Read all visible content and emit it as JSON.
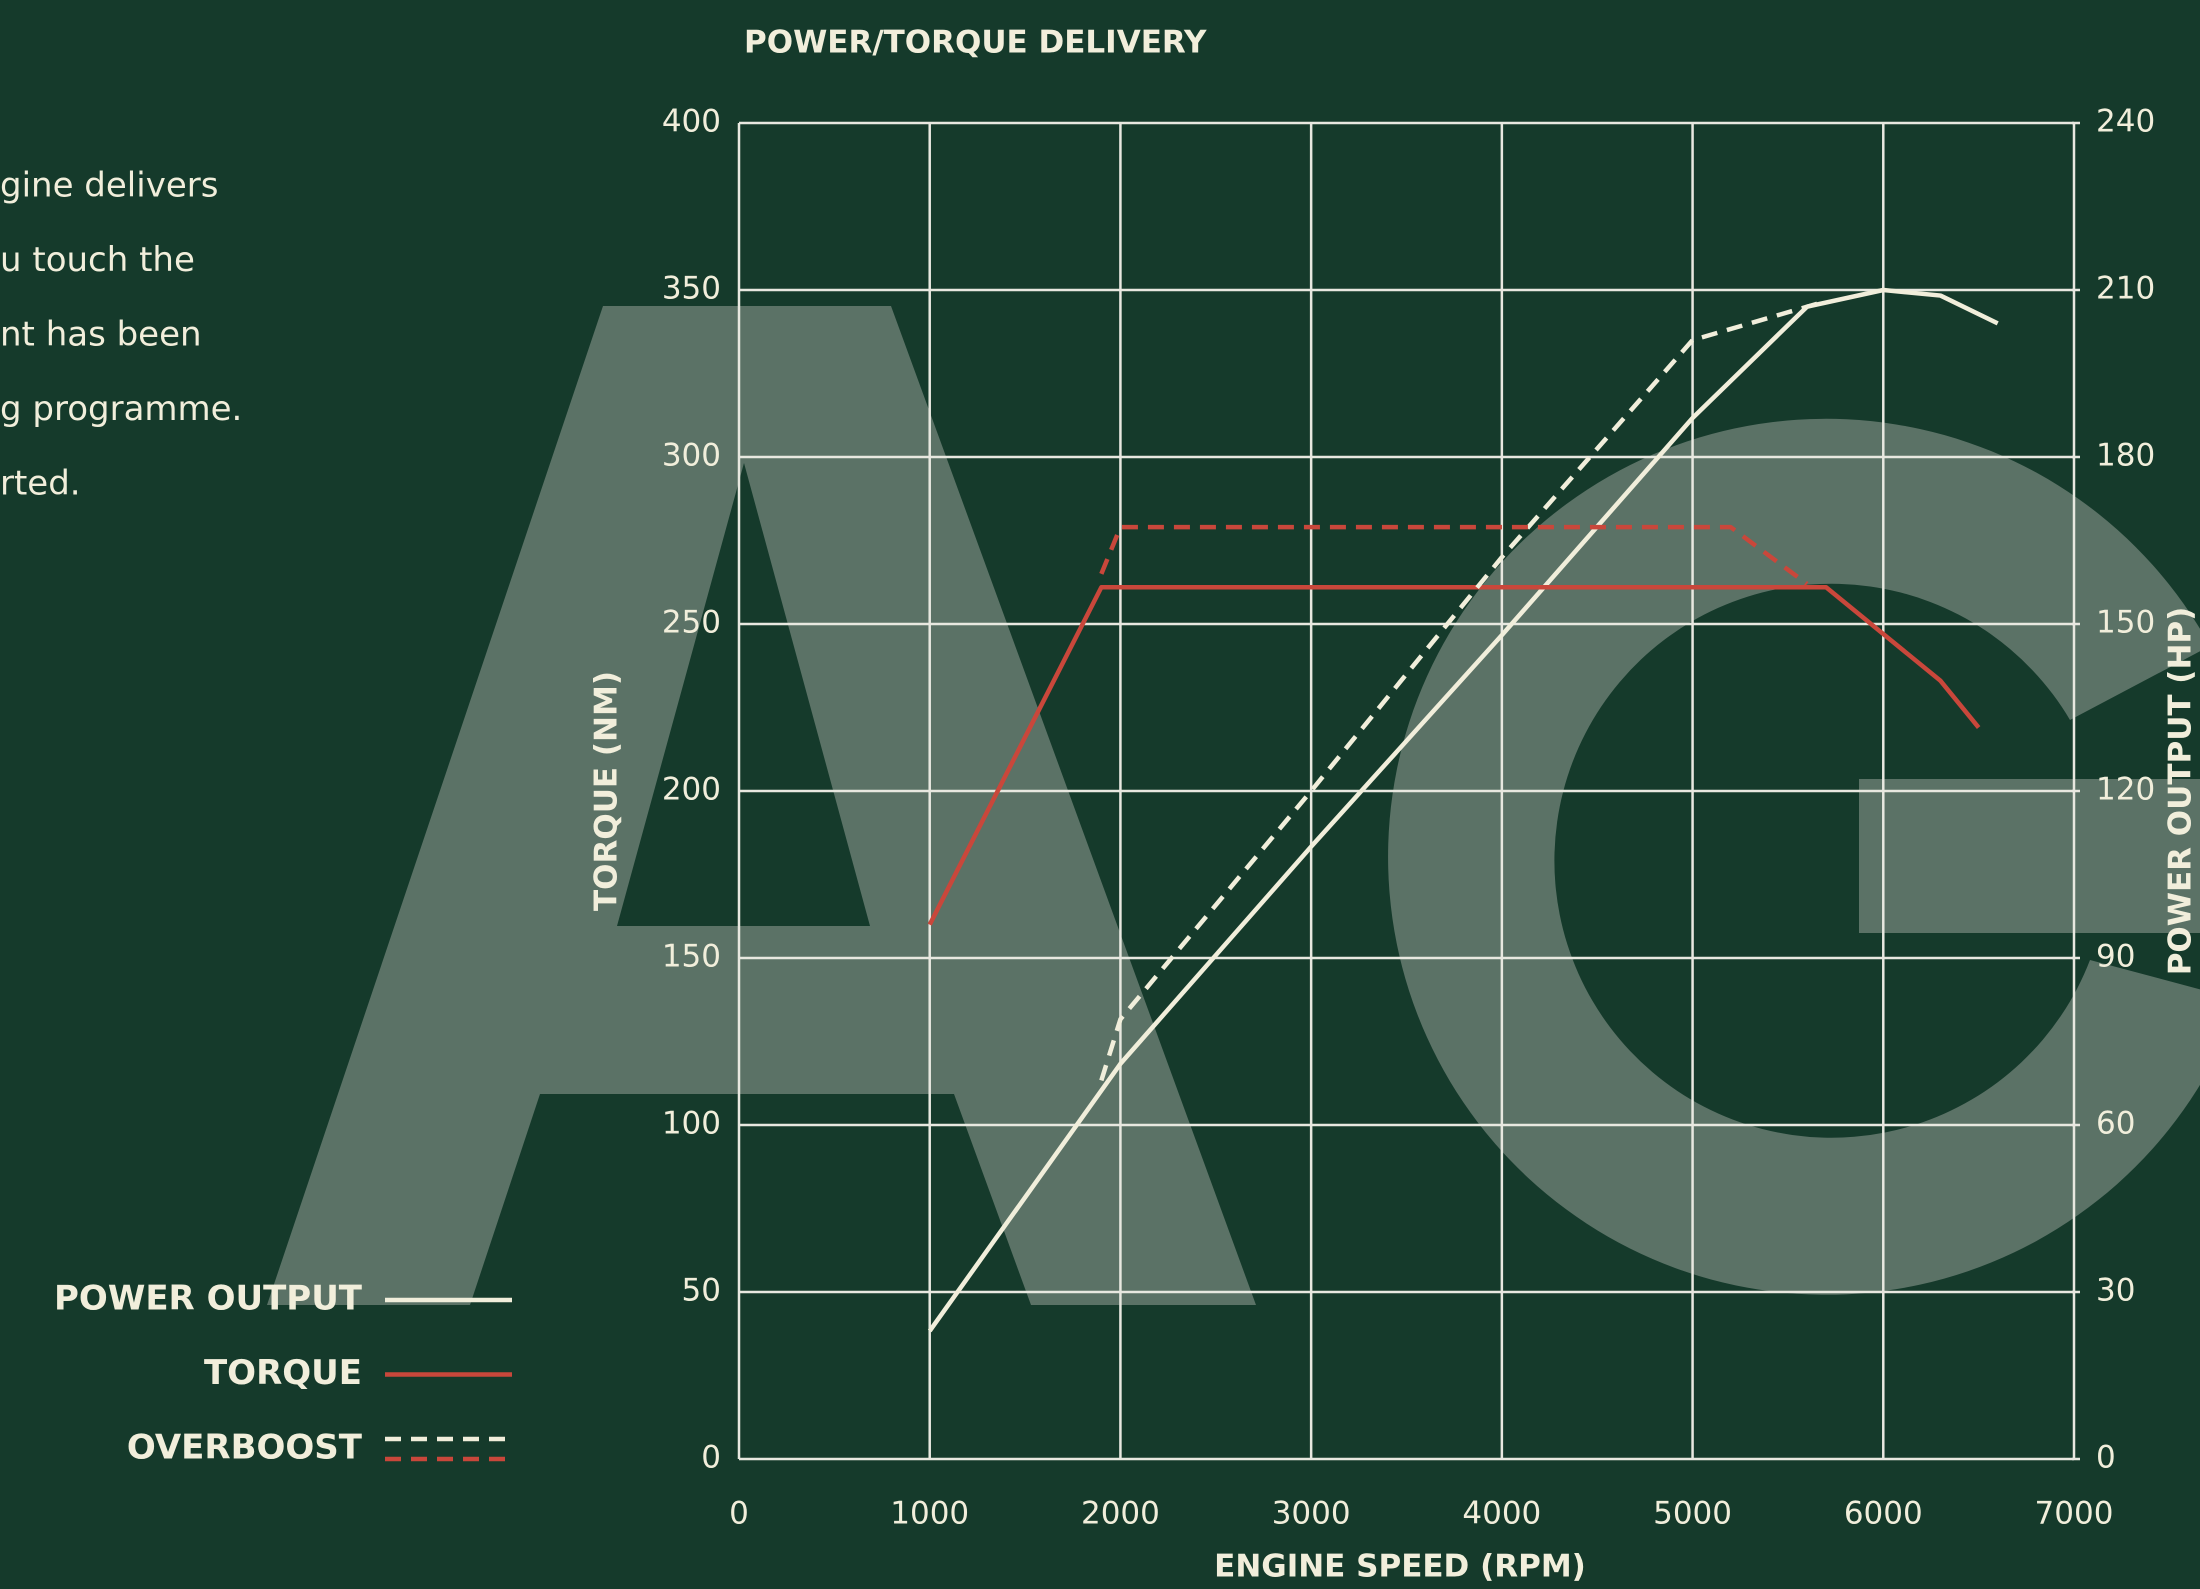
{
  "side_text": [
    "gine delivers",
    "u touch the",
    "nt has been",
    "g programme.",
    "rted."
  ],
  "chart_data": {
    "type": "line",
    "title": "POWER/TORQUE DELIVERY",
    "xlabel": "ENGINE SPEED (RPM)",
    "ylabel": "TORQUE (NM)",
    "y2label": "POWER OUTPUT (HP)",
    "xlim": [
      0,
      7000
    ],
    "xticks": [
      0,
      1000,
      2000,
      3000,
      4000,
      5000,
      6000,
      7000
    ],
    "ylim": [
      0,
      400
    ],
    "yticks": [
      0,
      50,
      100,
      150,
      200,
      250,
      300,
      350,
      400
    ],
    "y2lim": [
      0,
      240
    ],
    "y2ticks": [
      0,
      30,
      60,
      90,
      120,
      150,
      180,
      210,
      240
    ],
    "grid": true,
    "legend": "bottom-left",
    "series": [
      {
        "name": "POWER OUTPUT",
        "color": "#f1eedb",
        "axis": "y2",
        "dashed": false,
        "x": [
          1000,
          2000,
          3000,
          4000,
          5000,
          5600,
          6000,
          6300,
          6600
        ],
        "values": [
          23,
          71,
          110,
          148,
          187,
          207,
          210,
          209,
          204
        ]
      },
      {
        "name": "TORQUE",
        "color": "#c9473b",
        "dashed": false,
        "x": [
          1000,
          1900,
          5700,
          6000,
          6300,
          6500
        ],
        "values": [
          160,
          261,
          261,
          247,
          233,
          219
        ]
      },
      {
        "name": "OVERBOOST",
        "color": "#f1eedb",
        "axis": "y2",
        "dashed": true,
        "x": [
          1900,
          2000,
          3000,
          4000,
          5000,
          5500,
          5700
        ],
        "values": [
          68,
          79,
          120,
          162,
          201,
          206,
          208
        ]
      },
      {
        "color": "#c9473b",
        "dashed": true,
        "x": [
          1900,
          2000,
          5200,
          5600
        ],
        "values": [
          265,
          279,
          279,
          262
        ]
      }
    ]
  }
}
